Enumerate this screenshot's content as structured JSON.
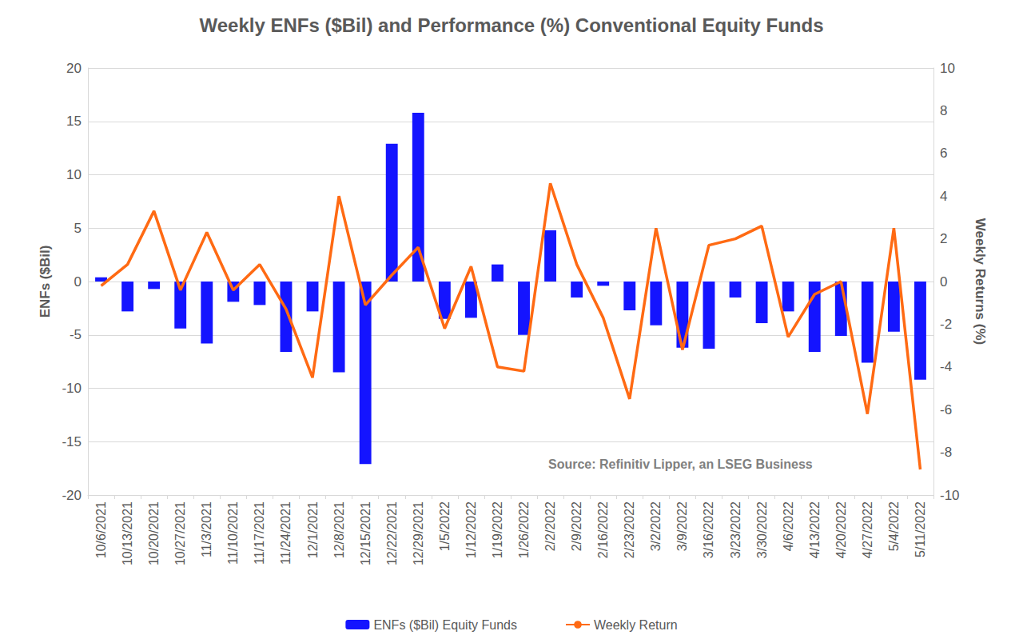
{
  "chart_data": {
    "type": "bar",
    "title": "Weekly ENFs ($Bil) and Performance (%) Conventional Equity Funds",
    "annotation": "Source: Refinitiv Lipper, an LSEG Business",
    "y_label": "ENFs ($Bil)",
    "y2_label": "Weekly Returns (%)",
    "categories": [
      "10/6/2021",
      "10/13/2021",
      "10/20/2021",
      "10/27/2021",
      "11/3/2021",
      "11/10/2021",
      "11/17/2021",
      "11/24/2021",
      "12/1/2021",
      "12/8/2021",
      "12/15/2021",
      "12/22/2021",
      "12/29/2021",
      "1/5/2022",
      "1/12/2022",
      "1/19/2022",
      "1/26/2022",
      "2/2/2022",
      "2/9/2022",
      "2/16/2022",
      "2/23/2022",
      "3/2/2022",
      "3/9/2022",
      "3/16/2022",
      "3/23/2022",
      "3/30/2022",
      "4/6/2022",
      "4/13/2022",
      "4/20/2022",
      "4/27/2022",
      "5/4/2022",
      "5/11/2022"
    ],
    "series": [
      {
        "name": "ENFs ($Bil) Equity Funds",
        "type": "bar",
        "color": "#1414ff",
        "values": [
          0.4,
          -2.8,
          -0.7,
          -4.4,
          -5.8,
          -1.9,
          -2.2,
          -6.6,
          -2.8,
          -8.5,
          -17.1,
          12.9,
          15.8,
          -3.5,
          -3.4,
          1.6,
          -5.0,
          4.8,
          -1.5,
          -0.4,
          -2.7,
          -4.1,
          -6.2,
          -6.3,
          -1.5,
          -3.9,
          -2.8,
          -6.6,
          -5.1,
          -7.6,
          -4.7,
          -9.2
        ]
      },
      {
        "name": "Weekly Return",
        "type": "line",
        "axis": "y2",
        "color": "#ff6a13",
        "values": [
          -0.2,
          0.8,
          3.3,
          -0.4,
          2.3,
          -0.4,
          0.8,
          -1.3,
          -4.5,
          4.0,
          -1.1,
          0.3,
          1.6,
          -2.2,
          0.7,
          -4.0,
          -4.2,
          4.6,
          0.8,
          -1.7,
          -5.5,
          2.5,
          -3.2,
          1.7,
          2.0,
          2.6,
          -2.6,
          -0.6,
          0.0,
          -6.2,
          2.5,
          -8.8
        ]
      }
    ],
    "ylim": [
      -20,
      20
    ],
    "yticks": [
      -20,
      -15,
      -10,
      -5,
      0,
      5,
      10,
      15,
      20
    ],
    "y2lim": [
      -10,
      10
    ],
    "y2ticks": [
      -10,
      -8,
      -6,
      -4,
      -2,
      0,
      2,
      4,
      6,
      8,
      10
    ],
    "grid": true,
    "legend": "bottom"
  }
}
